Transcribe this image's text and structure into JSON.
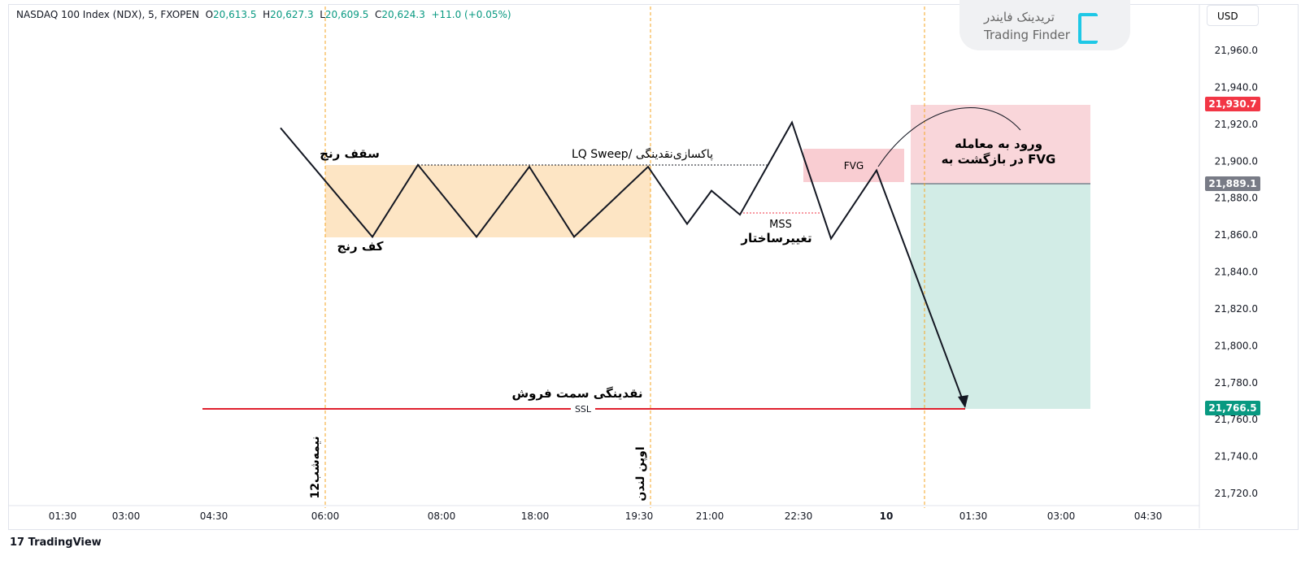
{
  "header": {
    "symbol": "NASDAQ 100 Index (NDX), 5, FXOPEN",
    "o_label": "O",
    "o": "20,613.5",
    "h_label": "H",
    "h": "20,627.3",
    "l_label": "L",
    "l": "20,609.5",
    "c_label": "C",
    "c": "20,624.3",
    "change": "+11.0 (+0.05%)"
  },
  "currency": "USD",
  "logo": {
    "fa": "تریدینک فایندر",
    "en": "Trading Finder"
  },
  "footer": "TradingView",
  "badges": {
    "tp": "21,930.7",
    "entry": "21,889.1",
    "sl": "21,766.5"
  },
  "colors": {
    "red": "#f23645",
    "green": "#089981",
    "gray": "#787b86",
    "orange": "#f5a623"
  },
  "chart_data": {
    "type": "line",
    "title": "NASDAQ 100 Index (NDX), 5, FXOPEN",
    "ylim": [
      21710,
      21975
    ],
    "y_ticks": [
      21960,
      21940,
      21920,
      21900,
      21880,
      21860,
      21840,
      21820,
      21800,
      21780,
      21760,
      21740,
      21720
    ],
    "y_tick_labels": [
      "21,960.0",
      "21,940.0",
      "21,920.0",
      "21,900.0",
      "21,880.0",
      "21,860.0",
      "21,840.0",
      "21,820.0",
      "21,800.0",
      "21,780.0",
      "21,760.0",
      "21,740.0",
      "21,720.0"
    ],
    "x_tick_labels": [
      "01:30",
      "03:00",
      "04:30",
      "06:00",
      "08:00",
      "18:00",
      "19:30",
      "21:00",
      "22:30",
      "10",
      "01:30",
      "03:00",
      "04:30"
    ],
    "x_tick_index": [
      0,
      1,
      2,
      3,
      4,
      5,
      6,
      7,
      8,
      9,
      10,
      11,
      12
    ],
    "path_prices": [
      21918,
      21859,
      21898,
      21859,
      21897,
      21859,
      21897,
      21866,
      21884,
      21871,
      21921,
      21858,
      21895,
      21767
    ],
    "annotations": {
      "range_high": "سقف رنج",
      "range_low": "کف رنج",
      "sweep": "LQ Sweep/ پاکسازی‌نقدینگی",
      "mss": "MSS",
      "mss_fa": "تغییرساختار",
      "fvg": "FVG",
      "entry_line1": "ورود به معامله",
      "entry_line2": "در بازگشت به FVG",
      "ssl_fa": "نقدینگی سمت فروش",
      "ssl": "SSL",
      "midnight": "12نیمه‌شب",
      "london": "اوپن لندن"
    },
    "levels": {
      "range_top": 21898,
      "range_bottom": 21859,
      "fvg_top": 21906,
      "fvg_bottom": 21888,
      "tp": 21930.7,
      "entry": 21889.1,
      "sl": 21766.5
    }
  }
}
